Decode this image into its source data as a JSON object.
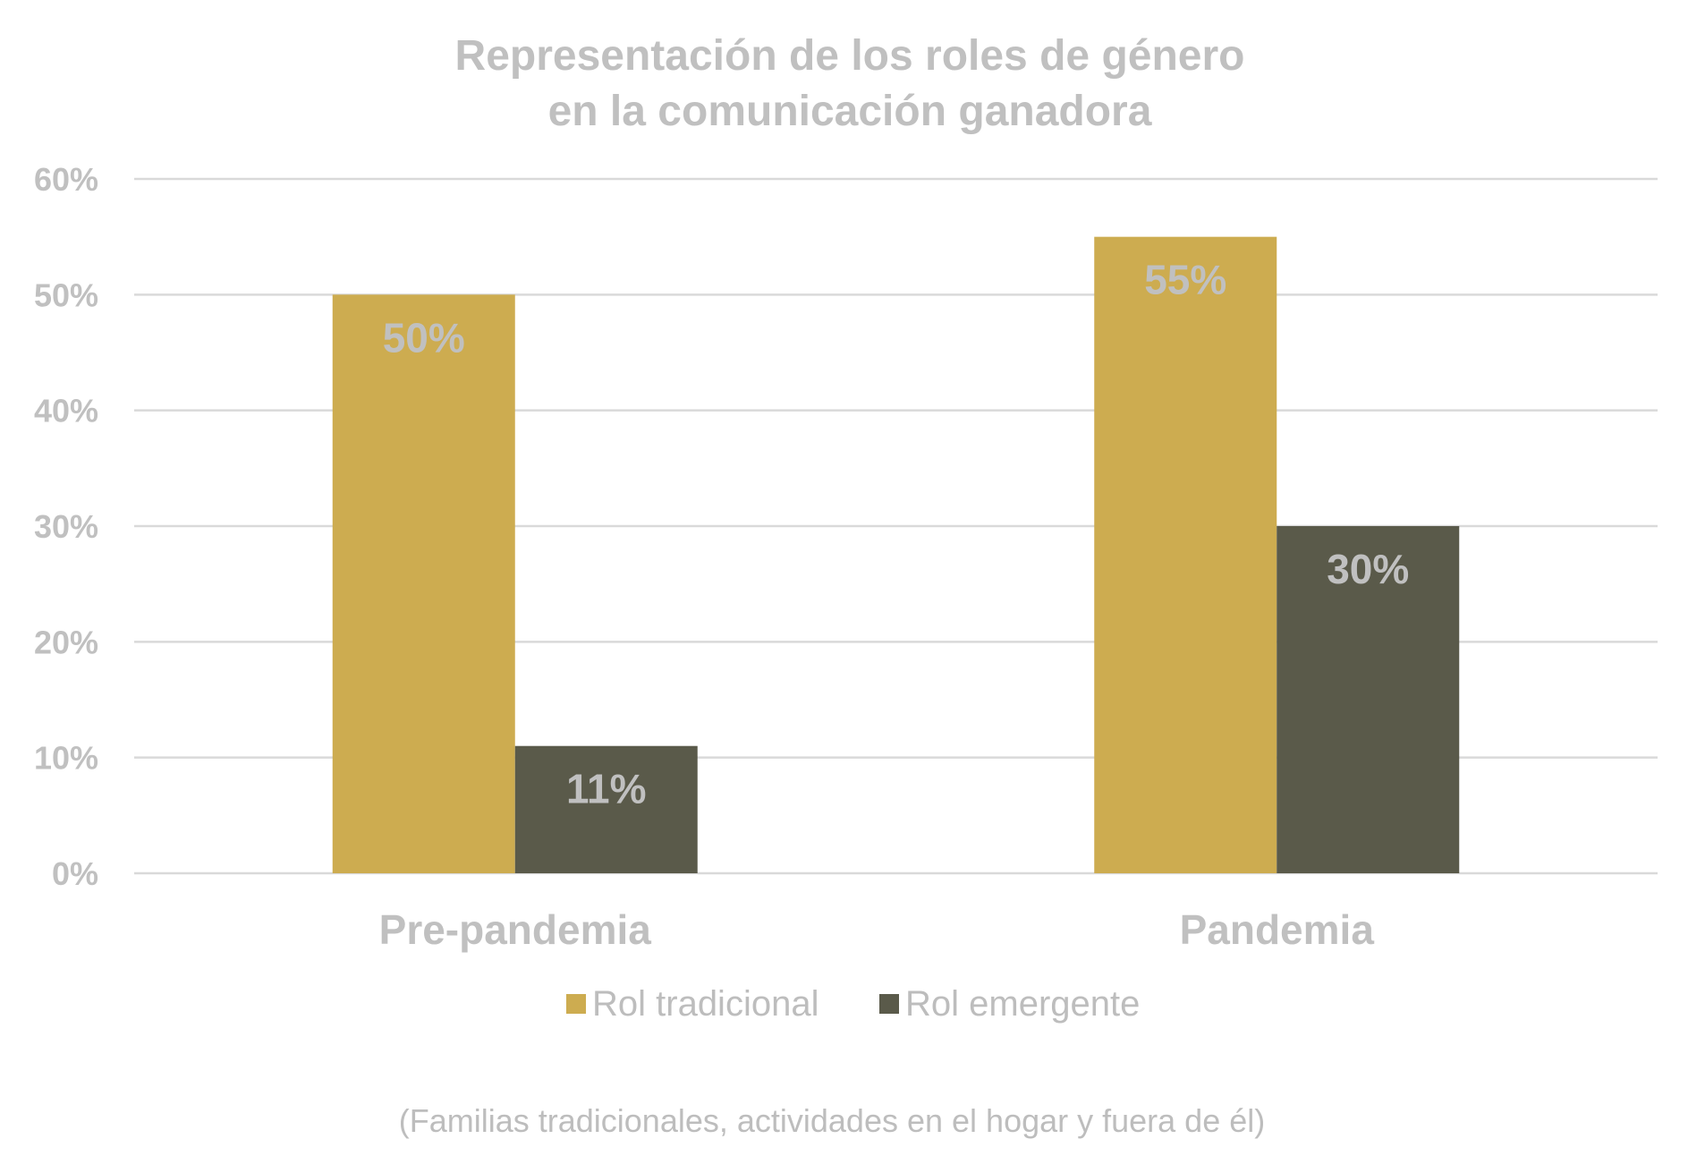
{
  "chart_data": {
    "type": "bar",
    "title": [
      "Representación de los roles de género",
      "en la comunicación ganadora"
    ],
    "categories": [
      "Pre-pandemia",
      "Pandemia"
    ],
    "series": [
      {
        "name": "Rol tradicional",
        "values": [
          50,
          55
        ],
        "labels": [
          "50%",
          "55%"
        ],
        "color": "#cdac50"
      },
      {
        "name": "Rol emergente",
        "values": [
          11,
          30
        ],
        "labels": [
          "11%",
          "30%"
        ],
        "color": "#5a5a4a"
      }
    ],
    "ylim": [
      0,
      60
    ],
    "yticks": [
      "0%",
      "10%",
      "20%",
      "30%",
      "40%",
      "50%",
      "60%"
    ],
    "grid": true,
    "legend_position": "bottom",
    "footnote": "(Familias tradicionales, actividades en el hogar y fuera de él)"
  }
}
